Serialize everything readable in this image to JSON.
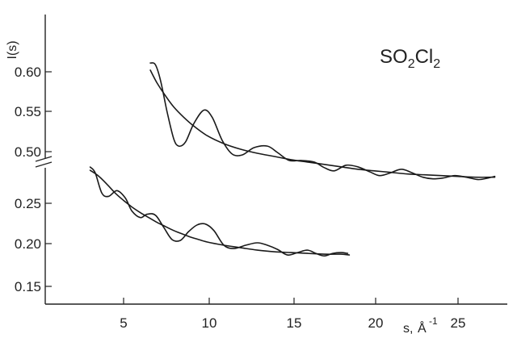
{
  "chart_data": {
    "type": "line",
    "title": "SO2Cl2",
    "title_parts": {
      "base": "SO",
      "sub1": "2",
      "mid": "Cl",
      "sub2": "2"
    },
    "ylabel": "I(s)",
    "xlabel_parts": {
      "s": "s,",
      "unit": "Å",
      "exp": "-1"
    },
    "grid": false,
    "legend": "none",
    "x_range": [
      2.0,
      28.0
    ],
    "x_ticks": [
      5,
      10,
      15,
      20,
      25
    ],
    "y_upper_ticks": [
      "0.60",
      "0.55",
      "0.50"
    ],
    "y_lower_ticks": [
      "0.25",
      "0.20",
      "0.15"
    ],
    "y_upper_range": [
      0.48,
      0.64
    ],
    "y_lower_range": [
      0.14,
      0.3
    ],
    "series": [
      {
        "panel": "upper",
        "kind": "experimental",
        "x": [
          6.6,
          6.9,
          7.2,
          7.6,
          8.0,
          8.3,
          8.7,
          9.2,
          9.8,
          10.3,
          10.9,
          11.5,
          12.1,
          12.8,
          13.6,
          14.2,
          14.9,
          15.6,
          16.4,
          17.0,
          17.6,
          18.3,
          19.0,
          19.7,
          20.3,
          20.9,
          21.6,
          22.2,
          22.9,
          23.5,
          24.1,
          24.8,
          25.5,
          26.2,
          26.8,
          27.2
        ],
        "y": [
          0.611,
          0.609,
          0.59,
          0.55,
          0.516,
          0.507,
          0.512,
          0.535,
          0.552,
          0.543,
          0.514,
          0.497,
          0.496,
          0.505,
          0.507,
          0.499,
          0.489,
          0.489,
          0.487,
          0.48,
          0.476,
          0.483,
          0.481,
          0.475,
          0.47,
          0.473,
          0.478,
          0.474,
          0.468,
          0.466,
          0.467,
          0.47,
          0.468,
          0.465,
          0.467,
          0.469
        ]
      },
      {
        "panel": "upper",
        "kind": "theoretical",
        "x": [
          6.6,
          7.0,
          7.5,
          8.0,
          8.6,
          9.2,
          10.0,
          11.0,
          12.0,
          13.0,
          14.0,
          15.0,
          16.0,
          17.0,
          18.0,
          19.0,
          20.0,
          21.0,
          22.0,
          23.0,
          24.0,
          25.0,
          26.0,
          27.2
        ],
        "y": [
          0.602,
          0.586,
          0.57,
          0.556,
          0.543,
          0.532,
          0.52,
          0.51,
          0.503,
          0.498,
          0.494,
          0.49,
          0.487,
          0.484,
          0.481,
          0.478,
          0.476,
          0.474,
          0.472,
          0.471,
          0.47,
          0.469,
          0.468,
          0.468
        ]
      },
      {
        "panel": "lower",
        "kind": "experimental",
        "x": [
          3.0,
          3.3,
          3.7,
          4.1,
          4.6,
          5.1,
          5.5,
          6.0,
          6.4,
          6.9,
          7.4,
          7.9,
          8.4,
          8.9,
          9.4,
          9.9,
          10.4,
          11.0,
          11.6,
          12.3,
          13.0,
          13.6,
          14.2,
          14.8,
          15.4,
          16.0,
          16.5,
          17.0,
          17.5,
          18.0,
          18.4
        ],
        "y": [
          0.294,
          0.287,
          0.262,
          0.258,
          0.265,
          0.256,
          0.24,
          0.232,
          0.236,
          0.235,
          0.22,
          0.205,
          0.204,
          0.215,
          0.223,
          0.224,
          0.216,
          0.198,
          0.194,
          0.198,
          0.201,
          0.198,
          0.193,
          0.186,
          0.189,
          0.192,
          0.188,
          0.185,
          0.188,
          0.189,
          0.188
        ]
      },
      {
        "panel": "lower",
        "kind": "theoretical",
        "x": [
          3.0,
          3.5,
          4.0,
          4.5,
          5.0,
          5.5,
          6.0,
          6.5,
          7.0,
          7.5,
          8.0,
          8.5,
          9.0,
          9.5,
          10.0,
          11.0,
          12.0,
          13.0,
          14.0,
          15.0,
          16.0,
          17.0,
          18.0,
          18.5
        ],
        "y": [
          0.29,
          0.283,
          0.273,
          0.262,
          0.253,
          0.245,
          0.238,
          0.232,
          0.226,
          0.221,
          0.216,
          0.212,
          0.208,
          0.205,
          0.202,
          0.198,
          0.195,
          0.192,
          0.19,
          0.189,
          0.188,
          0.187,
          0.187,
          0.186
        ]
      }
    ]
  }
}
